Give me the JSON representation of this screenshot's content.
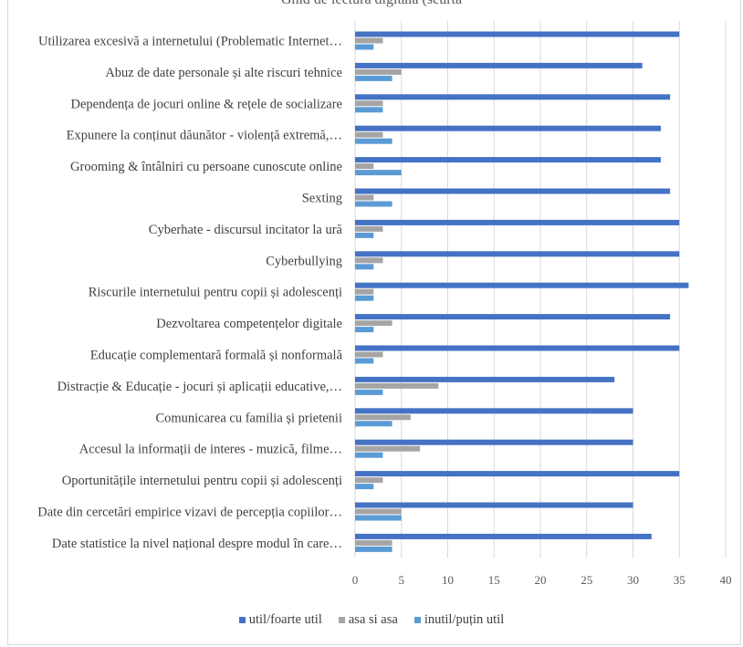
{
  "chart_data": {
    "type": "bar",
    "orientation": "horizontal",
    "title": "Ghid de lectură digitală (scurtă",
    "categories": [
      "Utilizarea excesivă a internetului (Problematic Internet…",
      "Abuz de date personale și alte riscuri tehnice",
      "Dependența de jocuri online & rețele de socializare",
      "Expunere la conținut dăunător - violență extremă,…",
      "Grooming & întâlniri cu persoane cunoscute online",
      "Sexting",
      "Cyberhate - discursul incitator la ură",
      "Cyberbullying",
      "Riscurile internetului pentru copii și adolescenți",
      "Dezvoltarea competențelor digitale",
      "Educație complementară formală și nonformală",
      "Distracție & Educație - jocuri și aplicații educative,…",
      "Comunicarea cu familia și prietenii",
      "Accesul la informații de interes - muzică, filme…",
      "Oportunitățile internetului pentru copii și adolescenți",
      "Date din cercetări empirice vizavi de percepția copiilor…",
      "Date statistice la nivel național despre modul în care…"
    ],
    "series": [
      {
        "name": "util/foarte util",
        "color": "#4472c4",
        "values": [
          35,
          31,
          34,
          33,
          33,
          34,
          35,
          35,
          36,
          34,
          35,
          28,
          30,
          30,
          35,
          30,
          32
        ]
      },
      {
        "name": "asa si asa",
        "color": "#a5a5a5",
        "values": [
          3,
          5,
          3,
          3,
          2,
          2,
          3,
          3,
          2,
          4,
          3,
          9,
          6,
          7,
          3,
          5,
          4
        ]
      },
      {
        "name": "inutil/puțin util",
        "color": "#5b9bd5",
        "values": [
          2,
          4,
          3,
          4,
          5,
          4,
          2,
          2,
          2,
          2,
          2,
          3,
          4,
          3,
          2,
          5,
          4
        ]
      }
    ],
    "xlim": [
      0,
      40
    ],
    "xticks": [
      0,
      5,
      10,
      15,
      20,
      25,
      30,
      35,
      40
    ],
    "grid": true,
    "legend_position": "bottom"
  }
}
